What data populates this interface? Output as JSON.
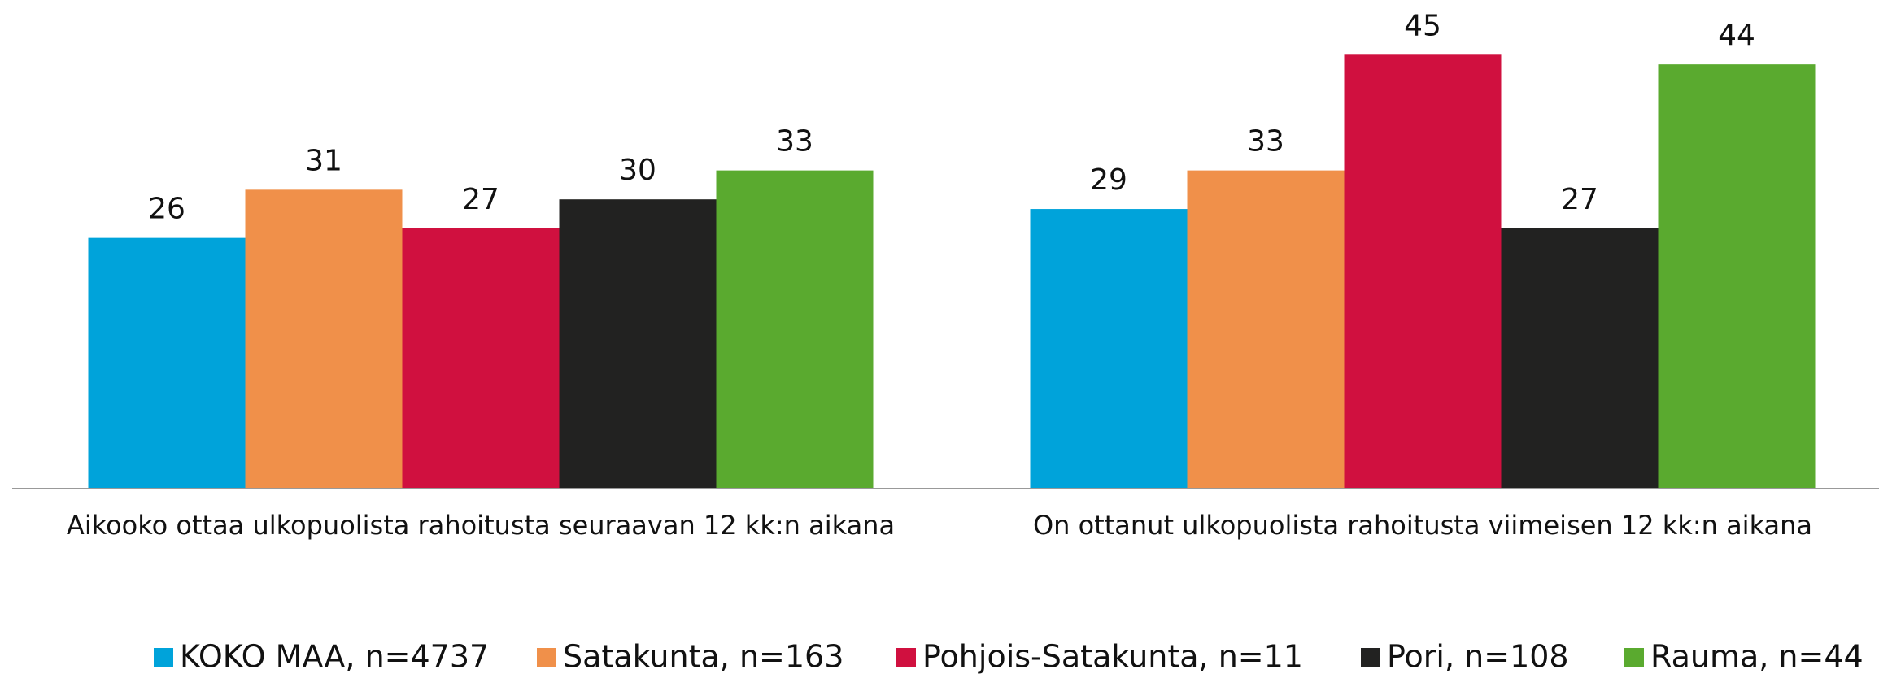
{
  "chart_data": {
    "type": "bar",
    "categories": [
      "Aikooko ottaa ulkopuolista rahoitusta seuraavan 12 kk:n aikana",
      "On ottanut ulkopuolista rahoitusta viimeisen 12 kk:n aikana"
    ],
    "series": [
      {
        "name": "KOKO MAA, n=4737",
        "color": "#00a3da",
        "values": [
          26,
          29
        ]
      },
      {
        "name": "Satakunta, n=163",
        "color": "#f0904a",
        "values": [
          31,
          33
        ]
      },
      {
        "name": "Pohjois-Satakunta, n=11",
        "color": "#d0103f",
        "values": [
          27,
          45
        ]
      },
      {
        "name": "Pori, n=108",
        "color": "#222221",
        "values": [
          30,
          27
        ]
      },
      {
        "name": "Rauma, n=44",
        "color": "#5aaa2f",
        "values": [
          33,
          44
        ]
      }
    ],
    "ylim": [
      0,
      50
    ],
    "legend": "bottom"
  }
}
